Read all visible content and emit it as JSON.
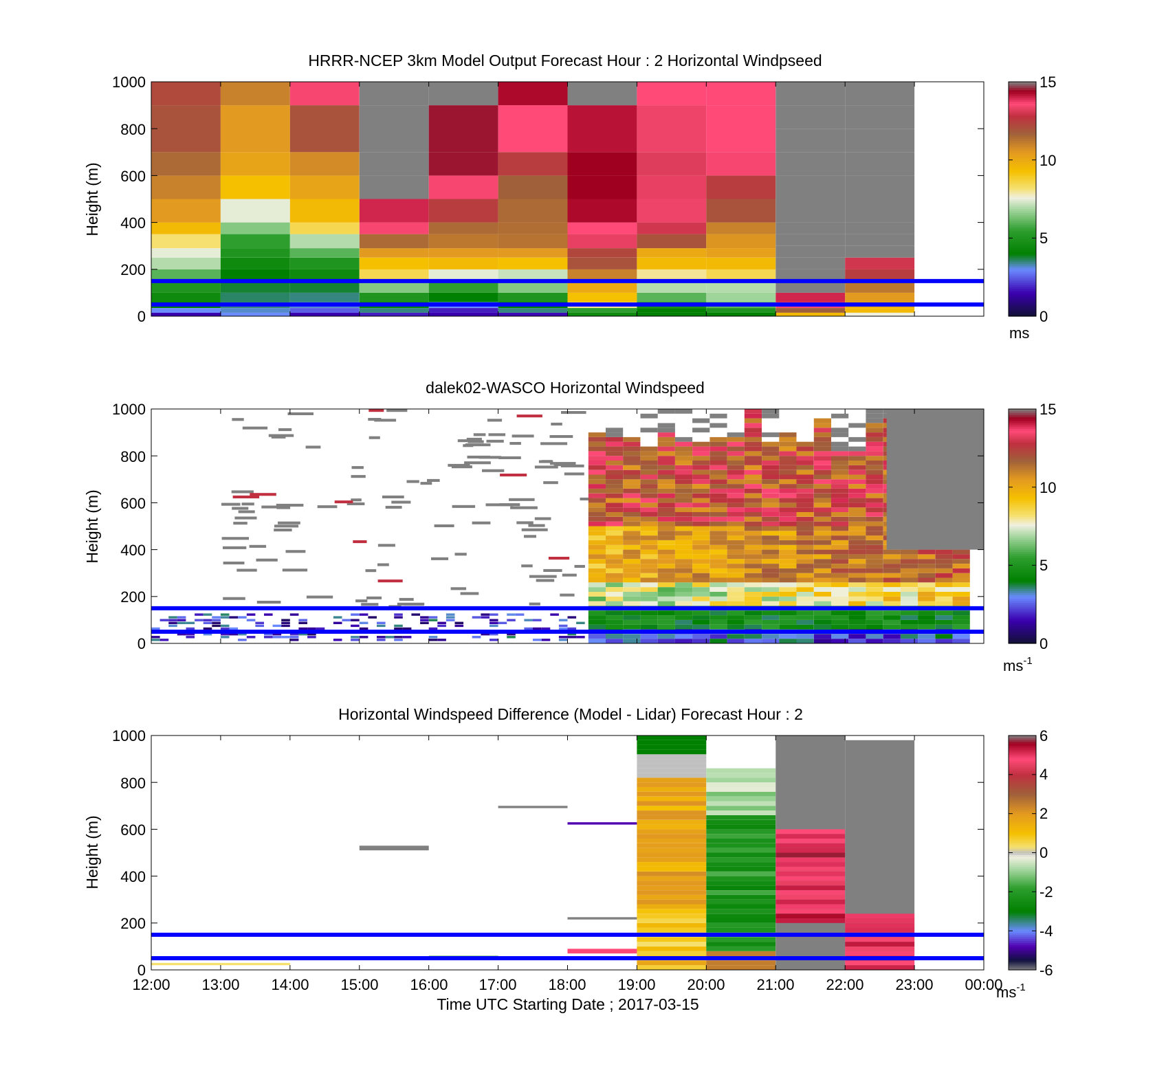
{
  "chart_data": [
    {
      "type": "heatmap",
      "title": "HRRR-NCEP 3km Model Output   Forecast Hour : 2 Horizontal Windpseed",
      "ylabel": "Height (m)",
      "ylim": [
        0,
        1000
      ],
      "yticks": [
        "0",
        "200",
        "400",
        "600",
        "800",
        "1000"
      ],
      "x_hours": [
        12,
        13,
        14,
        15,
        16,
        17,
        18,
        19,
        20,
        21,
        22,
        23,
        24
      ],
      "colorbar": {
        "min": 0,
        "max": 15,
        "ticks": [
          "0",
          "5",
          "10",
          "15"
        ],
        "unit": "ms",
        "unit_sup": ""
      },
      "reference_lines_m": [
        150,
        50
      ],
      "line_color": "#0000ff"
    },
    {
      "type": "heatmap",
      "title": "dalek02-WASCO  Horizontal Windspeed",
      "ylabel": "Height (m)",
      "ylim": [
        0,
        1000
      ],
      "yticks": [
        "0",
        "200",
        "400",
        "600",
        "800",
        "1000"
      ],
      "x_hours": [
        12,
        13,
        14,
        15,
        16,
        17,
        18,
        19,
        20,
        21,
        22,
        23,
        24
      ],
      "colorbar": {
        "min": 0,
        "max": 15,
        "ticks": [
          "0",
          "5",
          "10",
          "15"
        ],
        "unit": "ms",
        "unit_sup": "-1"
      },
      "reference_lines_m": [
        150,
        50
      ],
      "line_color": "#0000ff"
    },
    {
      "type": "heatmap",
      "title": "Horizontal Windspeed Difference (Model - Lidar) Forecast Hour : 2",
      "ylabel": "Height (m)",
      "xlabel": "Time UTC  Starting Date ; 2017-03-15",
      "ylim": [
        0,
        1000
      ],
      "yticks": [
        "0",
        "200",
        "400",
        "600",
        "800",
        "1000"
      ],
      "xticks": [
        "12:00",
        "13:00",
        "14:00",
        "15:00",
        "16:00",
        "17:00",
        "18:00",
        "19:00",
        "20:00",
        "21:00",
        "22:00",
        "23:00",
        "00:00"
      ],
      "x_hours": [
        12,
        13,
        14,
        15,
        16,
        17,
        18,
        19,
        20,
        21,
        22,
        23,
        24
      ],
      "colorbar": {
        "min": -6,
        "max": 6,
        "ticks": [
          "-6",
          "-4",
          "-2",
          "0",
          "2",
          "4",
          "6"
        ],
        "unit": "ms",
        "unit_sup": "-1"
      },
      "reference_lines_m": [
        150,
        50
      ],
      "line_color": "#0000ff"
    }
  ]
}
